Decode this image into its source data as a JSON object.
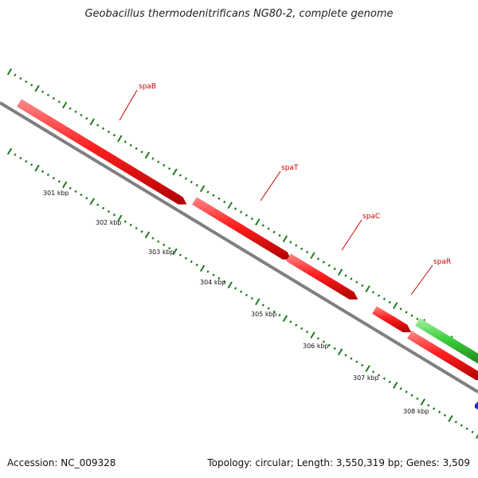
{
  "title": "Geobacillus thermodenitrificans NG80-2, complete genome",
  "footer": {
    "accession": "Accession: NC_009328",
    "summary": "Topology: circular; Length: 3,550,319 bp; Genes: 3,509"
  },
  "colors": {
    "backbone": "#7f7f7f",
    "forward_gene": "#ff2a2a",
    "reverse_gene": "#3fd03f",
    "other_feature": "#1a2bd6",
    "tick": "#1f7a1f",
    "label_line": "#cc0000"
  },
  "genes": [
    {
      "name": "spaB"
    },
    {
      "name": "spaT"
    },
    {
      "name": "spaC"
    },
    {
      "name": "spaR"
    }
  ],
  "scale_ticks": [
    "301 kbp",
    "302 kbp",
    "303 kbp",
    "304 kbp",
    "305 kbp",
    "306 kbp",
    "307 kbp",
    "308 kbp"
  ]
}
